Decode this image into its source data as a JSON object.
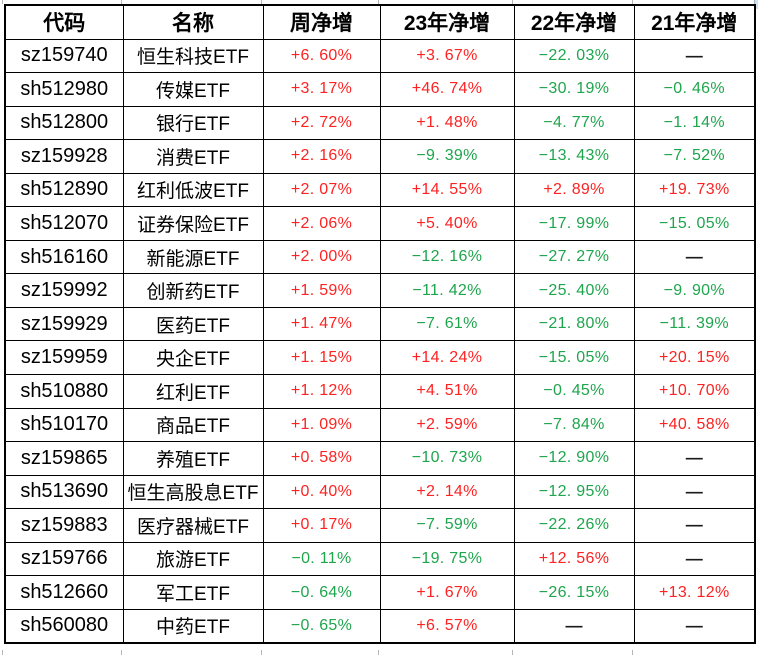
{
  "colors": {
    "positive": "#fe2222",
    "negative": "#1fa54d",
    "dash": "#1a1a1a"
  },
  "table": {
    "columns": [
      {
        "key": "code",
        "label": "代码",
        "type": "text"
      },
      {
        "key": "name",
        "label": "名称",
        "type": "text"
      },
      {
        "key": "week",
        "label": "周净增",
        "type": "value"
      },
      {
        "key": "y23",
        "label": "23年净增",
        "type": "value"
      },
      {
        "key": "y22",
        "label": "22年净增",
        "type": "value"
      },
      {
        "key": "y21",
        "label": "21年净增",
        "type": "value"
      }
    ],
    "rows": [
      {
        "code": "sz159740",
        "name": "恒生科技ETF",
        "week": "+6. 60%",
        "y23": "+3. 67%",
        "y22": "−22. 03%",
        "y21": "—"
      },
      {
        "code": "sh512980",
        "name": "传媒ETF",
        "week": "+3. 17%",
        "y23": "+46. 74%",
        "y22": "−30. 19%",
        "y21": "−0. 46%"
      },
      {
        "code": "sh512800",
        "name": "银行ETF",
        "week": "+2. 72%",
        "y23": "+1. 48%",
        "y22": "−4. 77%",
        "y21": "−1. 14%"
      },
      {
        "code": "sz159928",
        "name": "消费ETF",
        "week": "+2. 16%",
        "y23": "−9. 39%",
        "y22": "−13. 43%",
        "y21": "−7. 52%"
      },
      {
        "code": "sh512890",
        "name": "红利低波ETF",
        "week": "+2. 07%",
        "y23": "+14. 55%",
        "y22": "+2. 89%",
        "y21": "+19. 73%"
      },
      {
        "code": "sh512070",
        "name": "证券保险ETF",
        "week": "+2. 06%",
        "y23": "+5. 40%",
        "y22": "−17. 99%",
        "y21": "−15. 05%"
      },
      {
        "code": "sh516160",
        "name": "新能源ETF",
        "week": "+2. 00%",
        "y23": "−12. 16%",
        "y22": "−27. 27%",
        "y21": "—"
      },
      {
        "code": "sz159992",
        "name": "创新药ETF",
        "week": "+1. 59%",
        "y23": "−11. 42%",
        "y22": "−25. 40%",
        "y21": "−9. 90%"
      },
      {
        "code": "sz159929",
        "name": "医药ETF",
        "week": "+1. 47%",
        "y23": "−7. 61%",
        "y22": "−21. 80%",
        "y21": "−11. 39%"
      },
      {
        "code": "sz159959",
        "name": "央企ETF",
        "week": "+1. 15%",
        "y23": "+14. 24%",
        "y22": "−15. 05%",
        "y21": "+20. 15%"
      },
      {
        "code": "sh510880",
        "name": "红利ETF",
        "week": "+1. 12%",
        "y23": "+4. 51%",
        "y22": "−0. 45%",
        "y21": "+10. 70%"
      },
      {
        "code": "sh510170",
        "name": "商品ETF",
        "week": "+1. 09%",
        "y23": "+2. 59%",
        "y22": "−7. 84%",
        "y21": "+40. 58%"
      },
      {
        "code": "sz159865",
        "name": "养殖ETF",
        "week": "+0. 58%",
        "y23": "−10. 73%",
        "y22": "−12. 90%",
        "y21": "—"
      },
      {
        "code": "sh513690",
        "name": "恒生高股息ETF",
        "week": "+0. 40%",
        "y23": "+2. 14%",
        "y22": "−12. 95%",
        "y21": "—"
      },
      {
        "code": "sz159883",
        "name": "医疗器械ETF",
        "week": "+0. 17%",
        "y23": "−7. 59%",
        "y22": "−22. 26%",
        "y21": "—"
      },
      {
        "code": "sz159766",
        "name": "旅游ETF",
        "week": "−0. 11%",
        "y23": "−19. 75%",
        "y22": "+12. 56%",
        "y21": "—"
      },
      {
        "code": "sh512660",
        "name": "军工ETF",
        "week": "−0. 64%",
        "y23": "+1. 67%",
        "y22": "−26. 15%",
        "y21": "+13. 12%"
      },
      {
        "code": "sh560080",
        "name": "中药ETF",
        "week": "−0. 65%",
        "y23": "+6. 57%",
        "y22": "—",
        "y21": "—"
      }
    ]
  }
}
